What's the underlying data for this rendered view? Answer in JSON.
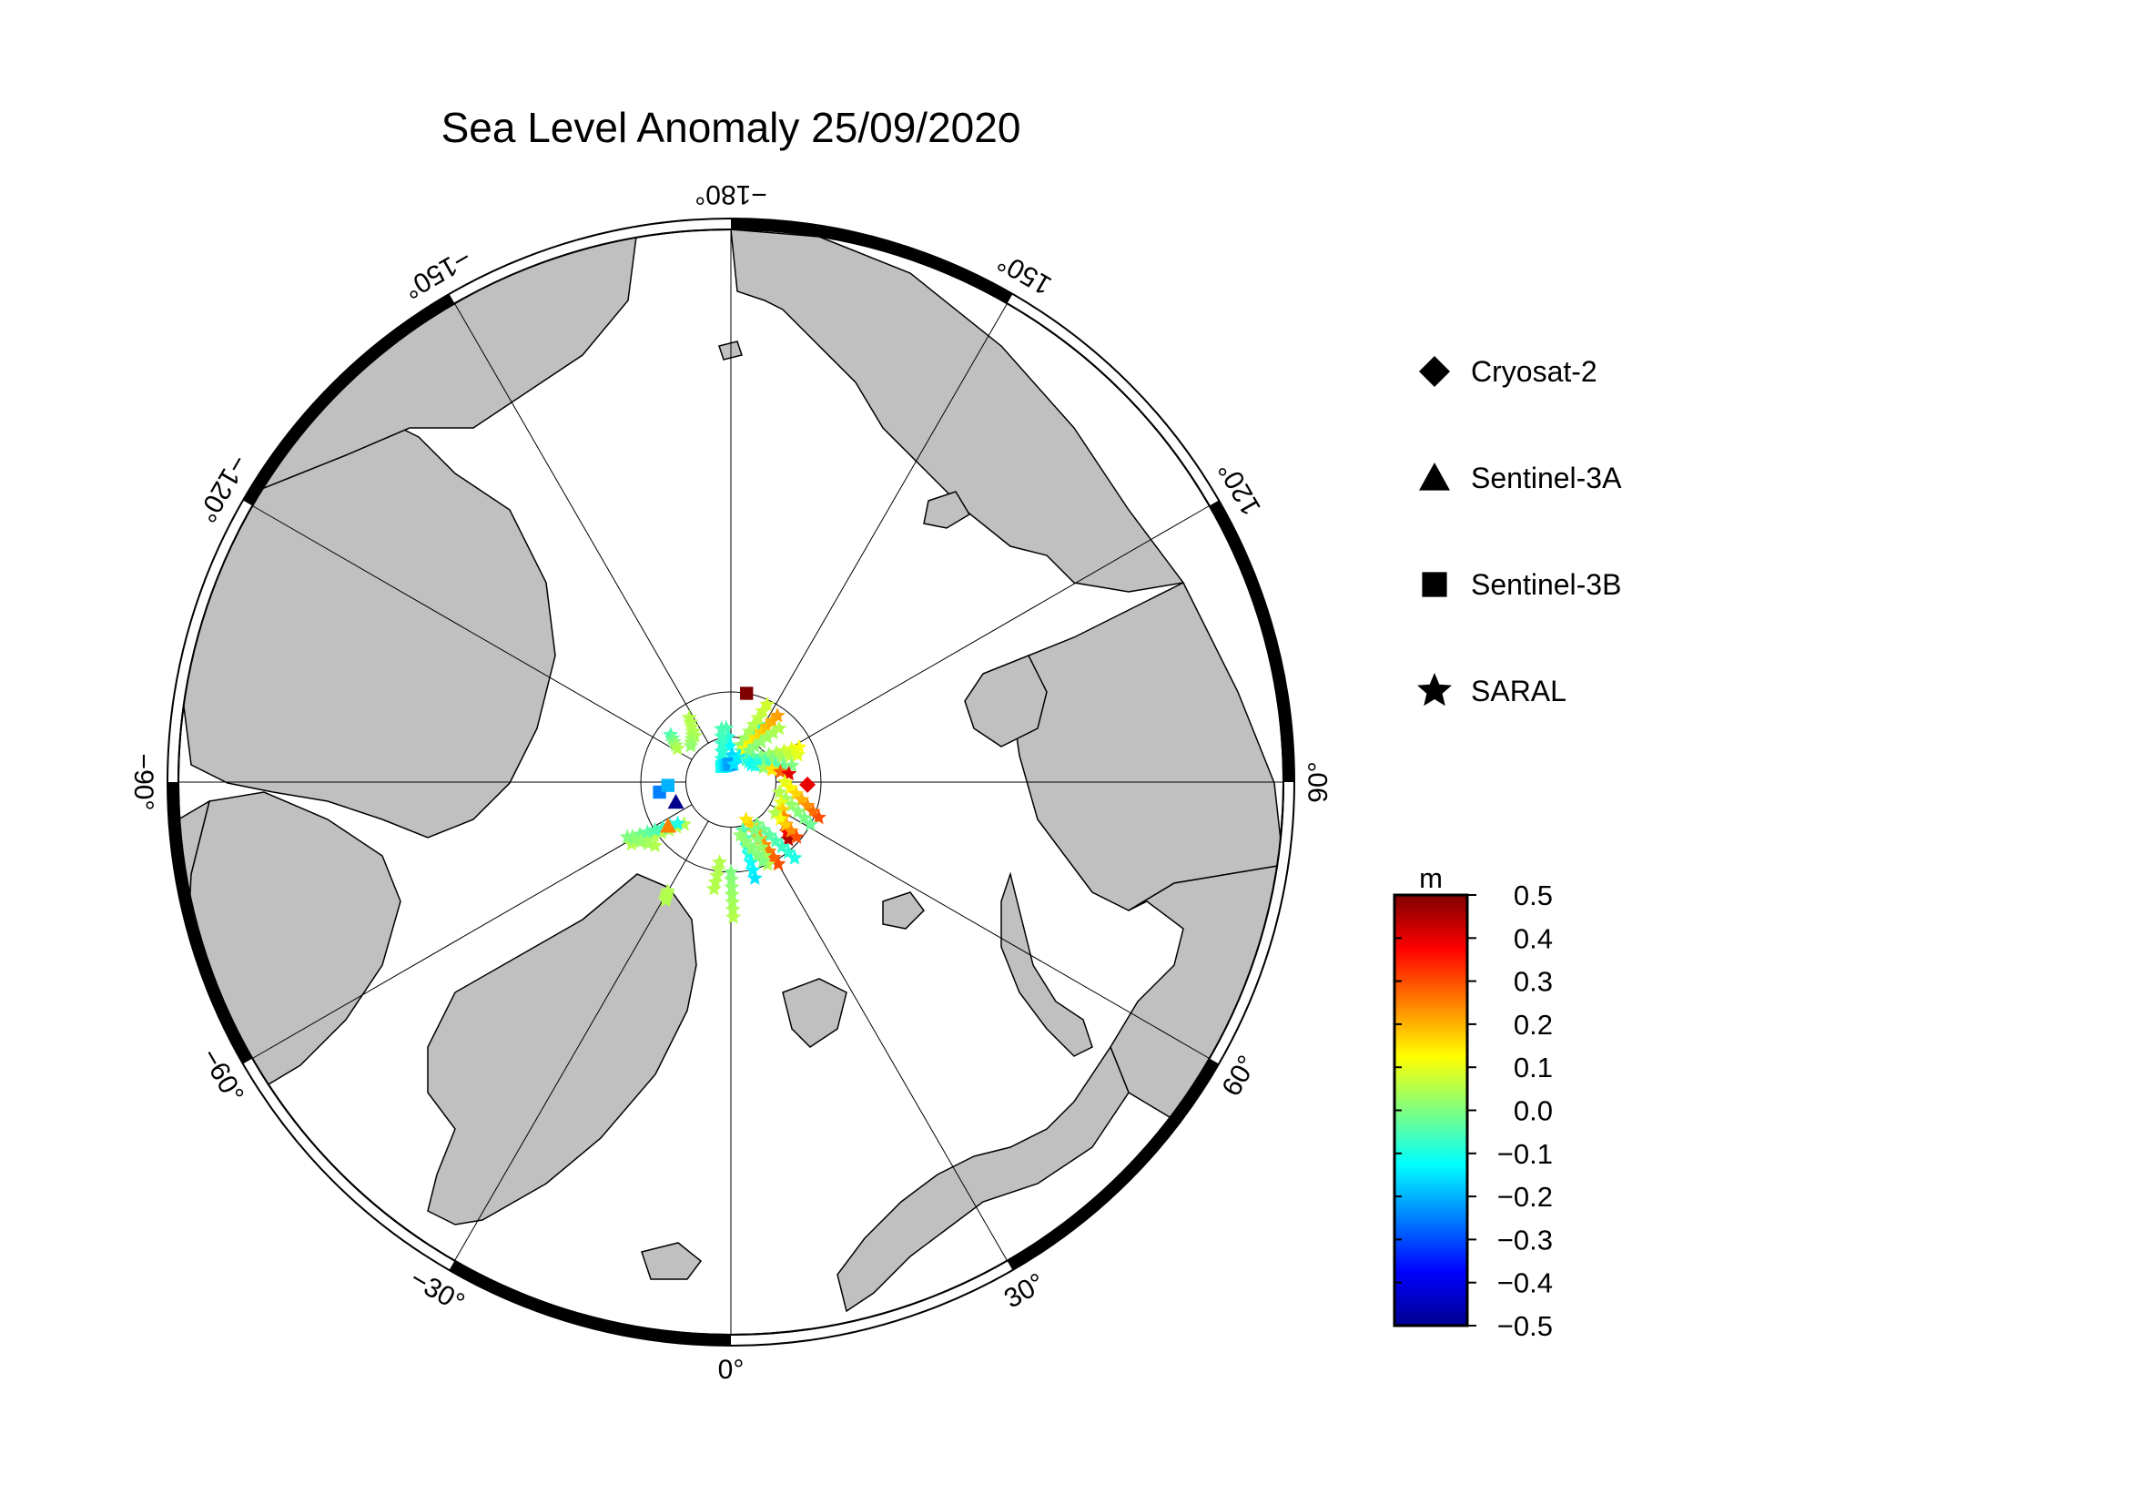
{
  "title": "Sea Level Anomaly 25/09/2020",
  "map": {
    "projection": "north polar stereographic",
    "colors": {
      "land": "#c0c0c0",
      "ocean": "#ffffff",
      "frame_dark": "#000000",
      "frame_light": "#ffffff"
    },
    "longitude_labels": [
      {
        "lon": 180,
        "text": "−180°"
      },
      {
        "lon": 150,
        "text": "150°"
      },
      {
        "lon": 120,
        "text": "120°"
      },
      {
        "lon": 90,
        "text": "90°"
      },
      {
        "lon": 60,
        "text": "60°"
      },
      {
        "lon": 30,
        "text": "30°"
      },
      {
        "lon": 0,
        "text": "0°"
      },
      {
        "lon": -30,
        "text": "−30°"
      },
      {
        "lon": -60,
        "text": "−60°"
      },
      {
        "lon": -90,
        "text": "−90°"
      },
      {
        "lon": -120,
        "text": "−120°"
      },
      {
        "lon": -150,
        "text": "−150°"
      }
    ],
    "latitude_circles": [
      80,
      70
    ]
  },
  "legend": {
    "items": [
      {
        "symbol": "diamond",
        "label": "Cryosat-2"
      },
      {
        "symbol": "triangle",
        "label": "Sentinel-3A"
      },
      {
        "symbol": "square",
        "label": "Sentinel-3B"
      },
      {
        "symbol": "star",
        "label": "SARAL"
      }
    ]
  },
  "colorbar": {
    "unit": "m",
    "min": -0.5,
    "max": 0.5,
    "colormap": "jet",
    "tick_labels": [
      "0.5",
      "0.4",
      "0.3",
      "0.2",
      "0.1",
      "0.0",
      "−0.1",
      "−0.2",
      "−0.3",
      "−0.4",
      "−0.5"
    ],
    "stops": [
      "#00008f",
      "#0000ff",
      "#0080ff",
      "#00ffff",
      "#80ff80",
      "#ffff00",
      "#ff8000",
      "#ff0000",
      "#800000"
    ]
  },
  "tracks": [
    {
      "satellite": "SARAL",
      "a": [
        -175,
        78
      ],
      "b": [
        172,
        86
      ],
      "sla": [
        -0.05,
        -0.2
      ]
    },
    {
      "satellite": "SARAL",
      "a": [
        -170,
        78
      ],
      "b": [
        -150,
        86
      ],
      "sla": [
        -0.05,
        -0.1
      ]
    },
    {
      "satellite": "Sentinel-3B",
      "a": [
        -150,
        86
      ],
      "b": [
        -178,
        86
      ],
      "sla": [
        -0.1,
        -0.22
      ]
    },
    {
      "satellite": "SARAL",
      "a": [
        170,
        86
      ],
      "b": [
        155,
        76
      ],
      "sla": [
        -0.15,
        -0.1
      ]
    },
    {
      "satellite": "SARAL",
      "a": [
        165,
        81.5
      ],
      "b": [
        155,
        71
      ],
      "sla": [
        0.02,
        0.08
      ]
    },
    {
      "satellite": "SARAL",
      "a": [
        157,
        82
      ],
      "b": [
        145,
        72
      ],
      "sla": [
        0.12,
        0.22
      ]
    },
    {
      "satellite": "SARAL",
      "a": [
        150,
        82
      ],
      "b": [
        138,
        74
      ],
      "sla": [
        0.0,
        0.05
      ]
    },
    {
      "satellite": "SARAL",
      "a": [
        145,
        84
      ],
      "b": [
        117,
        73
      ],
      "sla": [
        -0.05,
        0.12
      ]
    },
    {
      "satellite": "SARAL",
      "a": [
        138,
        84
      ],
      "b": [
        112,
        74
      ],
      "sla": [
        -0.1,
        0.1
      ]
    },
    {
      "satellite": "SARAL",
      "a": [
        130,
        84
      ],
      "b": [
        105,
        76
      ],
      "sla": [
        -0.12,
        0.0
      ]
    },
    {
      "satellite": "SARAL",
      "a": [
        124,
        83.5
      ],
      "b": [
        98,
        77
      ],
      "sla": [
        -0.1,
        0.4
      ]
    },
    {
      "satellite": "SARAL",
      "a": [
        90,
        78
      ],
      "b": [
        68,
        69
      ],
      "sla": [
        0.1,
        0.3
      ]
    },
    {
      "satellite": "SARAL",
      "a": [
        78,
        79
      ],
      "b": [
        62,
        70
      ],
      "sla": [
        0.05,
        -0.02
      ]
    },
    {
      "satellite": "SARAL",
      "a": [
        68,
        78
      ],
      "b": [
        45,
        72
      ],
      "sla": [
        0.1,
        0.45
      ]
    },
    {
      "satellite": "SARAL",
      "a": [
        55,
        78
      ],
      "b": [
        50,
        71
      ],
      "sla": [
        0.05,
        0.3
      ]
    },
    {
      "satellite": "SARAL",
      "a": [
        32,
        79
      ],
      "b": [
        40,
        68
      ],
      "sla": [
        0.0,
        -0.1
      ]
    },
    {
      "satellite": "SARAL",
      "a": [
        22,
        81
      ],
      "b": [
        30,
        69
      ],
      "sla": [
        0.15,
        0.3
      ]
    },
    {
      "satellite": "SARAL",
      "a": [
        26,
        78
      ],
      "b": [
        24,
        70
      ],
      "sla": [
        0.0,
        0.05
      ]
    },
    {
      "satellite": "SARAL",
      "a": [
        14,
        79
      ],
      "b": [
        14,
        68
      ],
      "sla": [
        -0.05,
        -0.15
      ]
    },
    {
      "satellite": "SARAL",
      "a": [
        10,
        78
      ],
      "b": [
        22,
        71
      ],
      "sla": [
        0.02,
        0.0
      ]
    },
    {
      "satellite": "SARAL",
      "a": [
        0,
        70
      ],
      "b": [
        1,
        60
      ],
      "sla": [
        0.0,
        0.05
      ]
    },
    {
      "satellite": "SARAL",
      "a": [
        -8,
        72
      ],
      "b": [
        -9,
        66
      ],
      "sla": [
        0.05,
        0.05
      ]
    },
    {
      "satellite": "SARAL",
      "a": [
        -30,
        62
      ],
      "b": [
        -29,
        60
      ],
      "sla": [
        0.05,
        0.05
      ]
    },
    {
      "satellite": "SARAL",
      "a": [
        -48,
        76
      ],
      "b": [
        -58,
        64
      ],
      "sla": [
        0.05,
        0.05
      ]
    },
    {
      "satellite": "SARAL",
      "a": [
        -52,
        75
      ],
      "b": [
        -61,
        65
      ],
      "sla": [
        -0.1,
        0.0
      ]
    },
    {
      "satellite": "SARAL",
      "a": [
        -50,
        68
      ],
      "b": [
        -62,
        64
      ],
      "sla": [
        0.05,
        0.0
      ]
    },
    {
      "satellite": "SARAL",
      "a": [
        -128,
        73
      ],
      "b": [
        -122,
        76
      ],
      "sla": [
        -0.05,
        0.05
      ]
    },
    {
      "satellite": "SARAL",
      "a": [
        -147,
        73
      ],
      "b": [
        -142,
        77
      ],
      "sla": [
        0.05,
        0.05
      ]
    },
    {
      "satellite": "SARAL",
      "a": [
        -143,
        76
      ],
      "b": [
        -132,
        78
      ],
      "sla": [
        0.05,
        0.02
      ]
    }
  ],
  "symbols": [
    {
      "satellite": "Cryosat-2",
      "lon": 88,
      "lat": 73,
      "sla": 0.4
    },
    {
      "satellite": "Sentinel-3A",
      "lon": -70,
      "lat": 77,
      "sla": -0.5
    },
    {
      "satellite": "Sentinel-3A",
      "lon": -55,
      "lat": 73,
      "sla": 0.25
    },
    {
      "satellite": "Sentinel-3B",
      "lon": -82,
      "lat": 74,
      "sla": -0.25
    },
    {
      "satellite": "Sentinel-3B",
      "lon": -87,
      "lat": 76,
      "sla": -0.2
    },
    {
      "satellite": "Sentinel-3B",
      "lon": 170,
      "lat": 70,
      "sla": 0.5
    }
  ]
}
